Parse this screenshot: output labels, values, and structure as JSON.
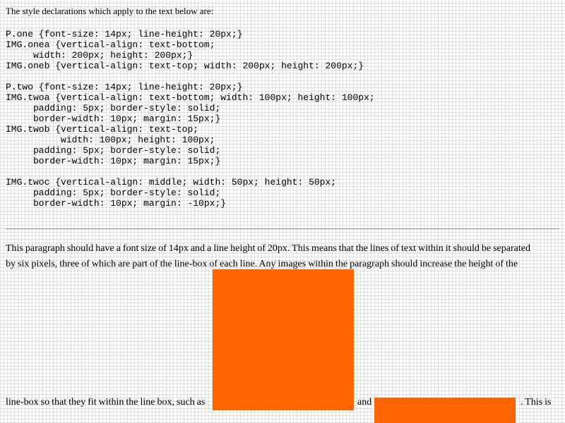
{
  "intro": "The style declarations which apply to the text below are:",
  "css_rules": "P.one {font-size: 14px; line-height: 20px;}\nIMG.onea {vertical-align: text-bottom;\n     width: 200px; height: 200px;}\nIMG.oneb {vertical-align: text-top; width: 200px; height: 200px;}\n\nP.two {font-size: 14px; line-height: 20px;}\nIMG.twoa {vertical-align: text-bottom; width: 100px; height: 100px;\n     padding: 5px; border-style: solid;\n     border-width: 10px; margin: 15px;}\nIMG.twob {vertical-align: text-top;\n          width: 100px; height: 100px;\n     padding: 5px; border-style: solid;\n     border-width: 10px; margin: 15px;}\n\nIMG.twoc {vertical-align: middle; width: 50px; height: 50px;\n     padding: 5px; border-style: solid;\n     border-width: 10px; margin: -10px;}",
  "paragraph_one": {
    "line1": "This paragraph should have a font size of 14px and a line height of 20px. This means that the lines of text within it should be separated",
    "line2": "by six pixels, three of which are part of the line-box of each line. Any images within the paragraph should increase the height of the",
    "line3_start": "line-box so that they fit within the line box, such as",
    "word_and": "and",
    "line3_end": ". This is"
  },
  "colors": {
    "image_fill": "#ff6600",
    "divider": "#9a9a9a"
  }
}
